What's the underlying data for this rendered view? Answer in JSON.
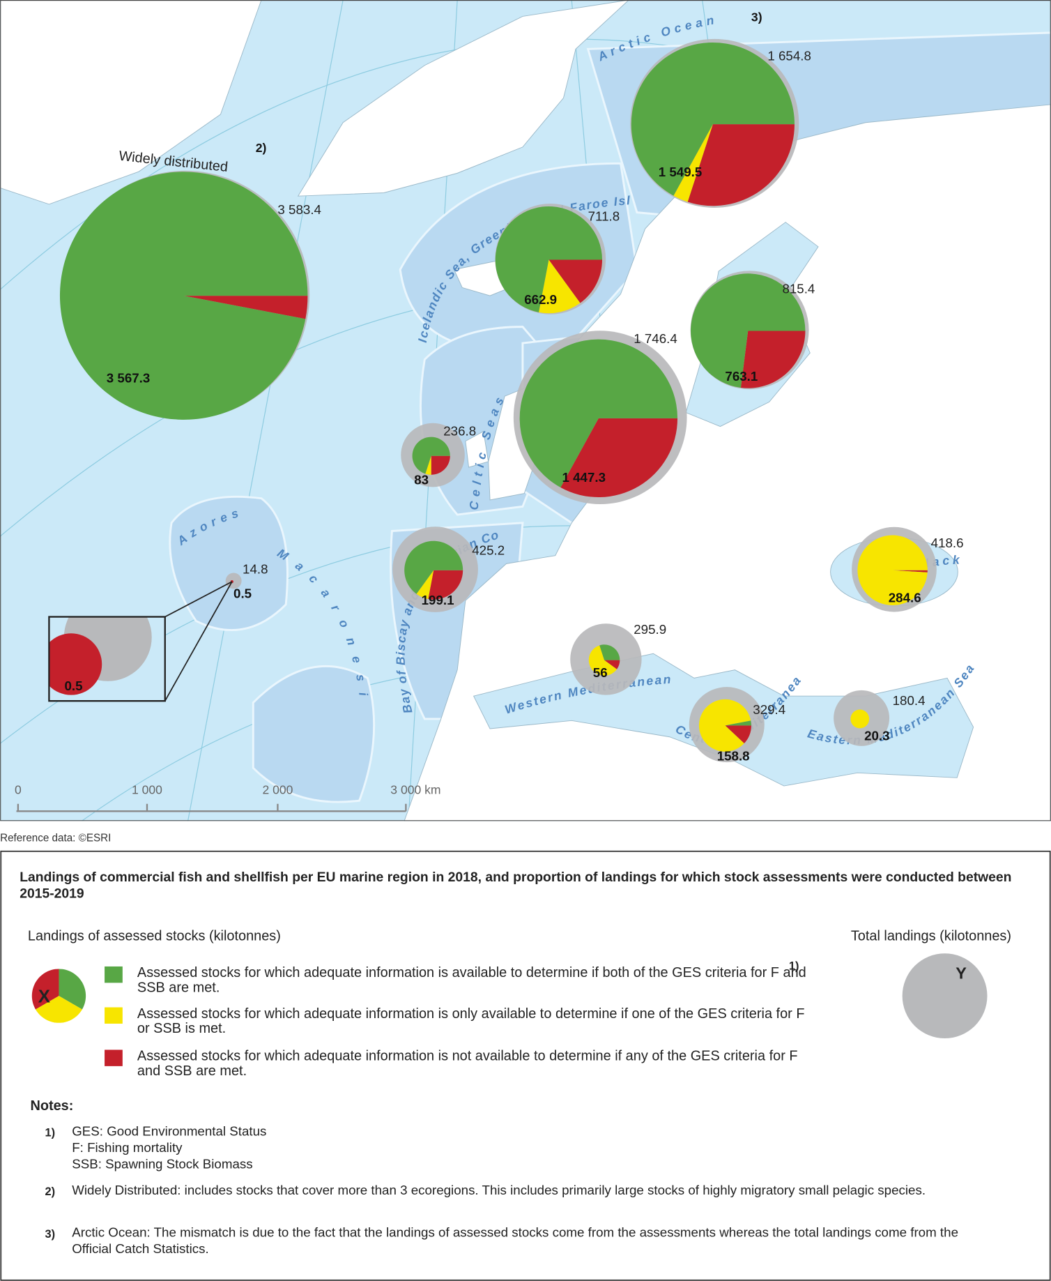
{
  "map": {
    "regions": [
      {
        "name": "Widely distributed",
        "note": "2)",
        "total": 3583.4,
        "total_label": "3 583.4",
        "assessed": 3567.3,
        "assessed_label": "3 567.3",
        "shares": [
          97,
          0,
          3
        ]
      },
      {
        "note": "3)",
        "total": 1654.8,
        "total_label": "1 654.8",
        "assessed": 1549.5,
        "assessed_label": "1 549.5",
        "shares": [
          67,
          3,
          30
        ]
      },
      {
        "total": 711.8,
        "total_label": "711.8",
        "assessed": 662.9,
        "assessed_label": "662.9",
        "shares": [
          72,
          13,
          15
        ]
      },
      {
        "total": 1746.4,
        "total_label": "1 746.4",
        "assessed": 1447.3,
        "assessed_label": "1 447.3",
        "shares": [
          67,
          0,
          33
        ]
      },
      {
        "total": 815.4,
        "total_label": "815.4",
        "assessed": 763.1,
        "assessed_label": "763.1",
        "shares": [
          73,
          0,
          27
        ]
      },
      {
        "total": 236.8,
        "total_label": "236.8",
        "assessed": 83,
        "assessed_label": "83",
        "shares": [
          70,
          5,
          25
        ]
      },
      {
        "total": 425.2,
        "total_label": "425.2",
        "assessed": 199.1,
        "assessed_label": "199.1",
        "shares": [
          65,
          7,
          28
        ]
      },
      {
        "total": 14.8,
        "total_label": "14.8",
        "assessed": 0.5,
        "assessed_label": "0.5",
        "shares": [
          0,
          0,
          100
        ]
      },
      {
        "total": 418.6,
        "total_label": "418.6",
        "assessed": 284.6,
        "assessed_label": "284.6",
        "shares": [
          0,
          99,
          1
        ]
      },
      {
        "total": 295.9,
        "total_label": "295.9",
        "assessed": 56,
        "assessed_label": "56",
        "shares": [
          30,
          60,
          10
        ]
      },
      {
        "total": 329.4,
        "total_label": "329.4",
        "assessed": 158.8,
        "assessed_label": "158.8",
        "shares": [
          3,
          85,
          12
        ]
      },
      {
        "total": 180.4,
        "total_label": "180.4",
        "assessed": 20.3,
        "assessed_label": "20.3",
        "shares": [
          0,
          100,
          0
        ]
      }
    ],
    "inset": {
      "assessed": 0.5,
      "label": "0.5"
    },
    "sea_labels": [
      "Arctic Ocean",
      "Icelandic Sea, Greenland and Faroe Islands",
      "Celtic Seas",
      "Bay of Biscay and the Iberian Coast",
      "Azores",
      "Macaronesia",
      "Western Mediterranean Sea",
      "Central Mediterranean Sea",
      "Eastern Mediterranean Sea",
      "Black Sea"
    ],
    "scale_labels": [
      "0",
      "1 000",
      "2 000",
      "3 000 km"
    ],
    "credit": "Reference data: ©ESRI"
  },
  "legend": {
    "title": "Landings of commercial fish and shellfish per EU marine region in 2018, and proportion of landings for which stock assessments were conducted between 2015-2019",
    "assessed_heading": "Landings of assessed stocks (kilotonnes)",
    "pie_symbol": "X",
    "items": [
      {
        "text": "Assessed stocks for which adequate information is available to determine if both of the GES criteria for F and SSB are met.",
        "color": "#58a745"
      },
      {
        "text": "Assessed stocks for which adequate information is only available to determine if one of the GES criteria for F or SSB is met.",
        "color": "#f7e500"
      },
      {
        "text": "Assessed stocks for which adequate information is not available to determine if any of the GES criteria for F and SSB are met.",
        "color": "#c4202b"
      }
    ],
    "note_ref": "1)",
    "total_heading": "Total landings (kilotonnes)",
    "total_symbol": "Y"
  },
  "notes": {
    "heading": "Notes:",
    "items": [
      {
        "marker": "1)",
        "lines": [
          "GES: Good Environmental Status",
          "F: Fishing mortality",
          "SSB: Spawning Stock Biomass"
        ]
      },
      {
        "marker": "2)",
        "lines": [
          "Widely Distributed: includes stocks that cover more than 3 ecoregions. This includes primarily large stocks of highly migratory small pelagic species."
        ]
      },
      {
        "marker": "3)",
        "lines": [
          "Arctic Ocean: The mismatch is due to the fact that the landings of assessed stocks come from the assessments whereas the total landings come from the Official Catch Statistics."
        ]
      }
    ]
  }
}
